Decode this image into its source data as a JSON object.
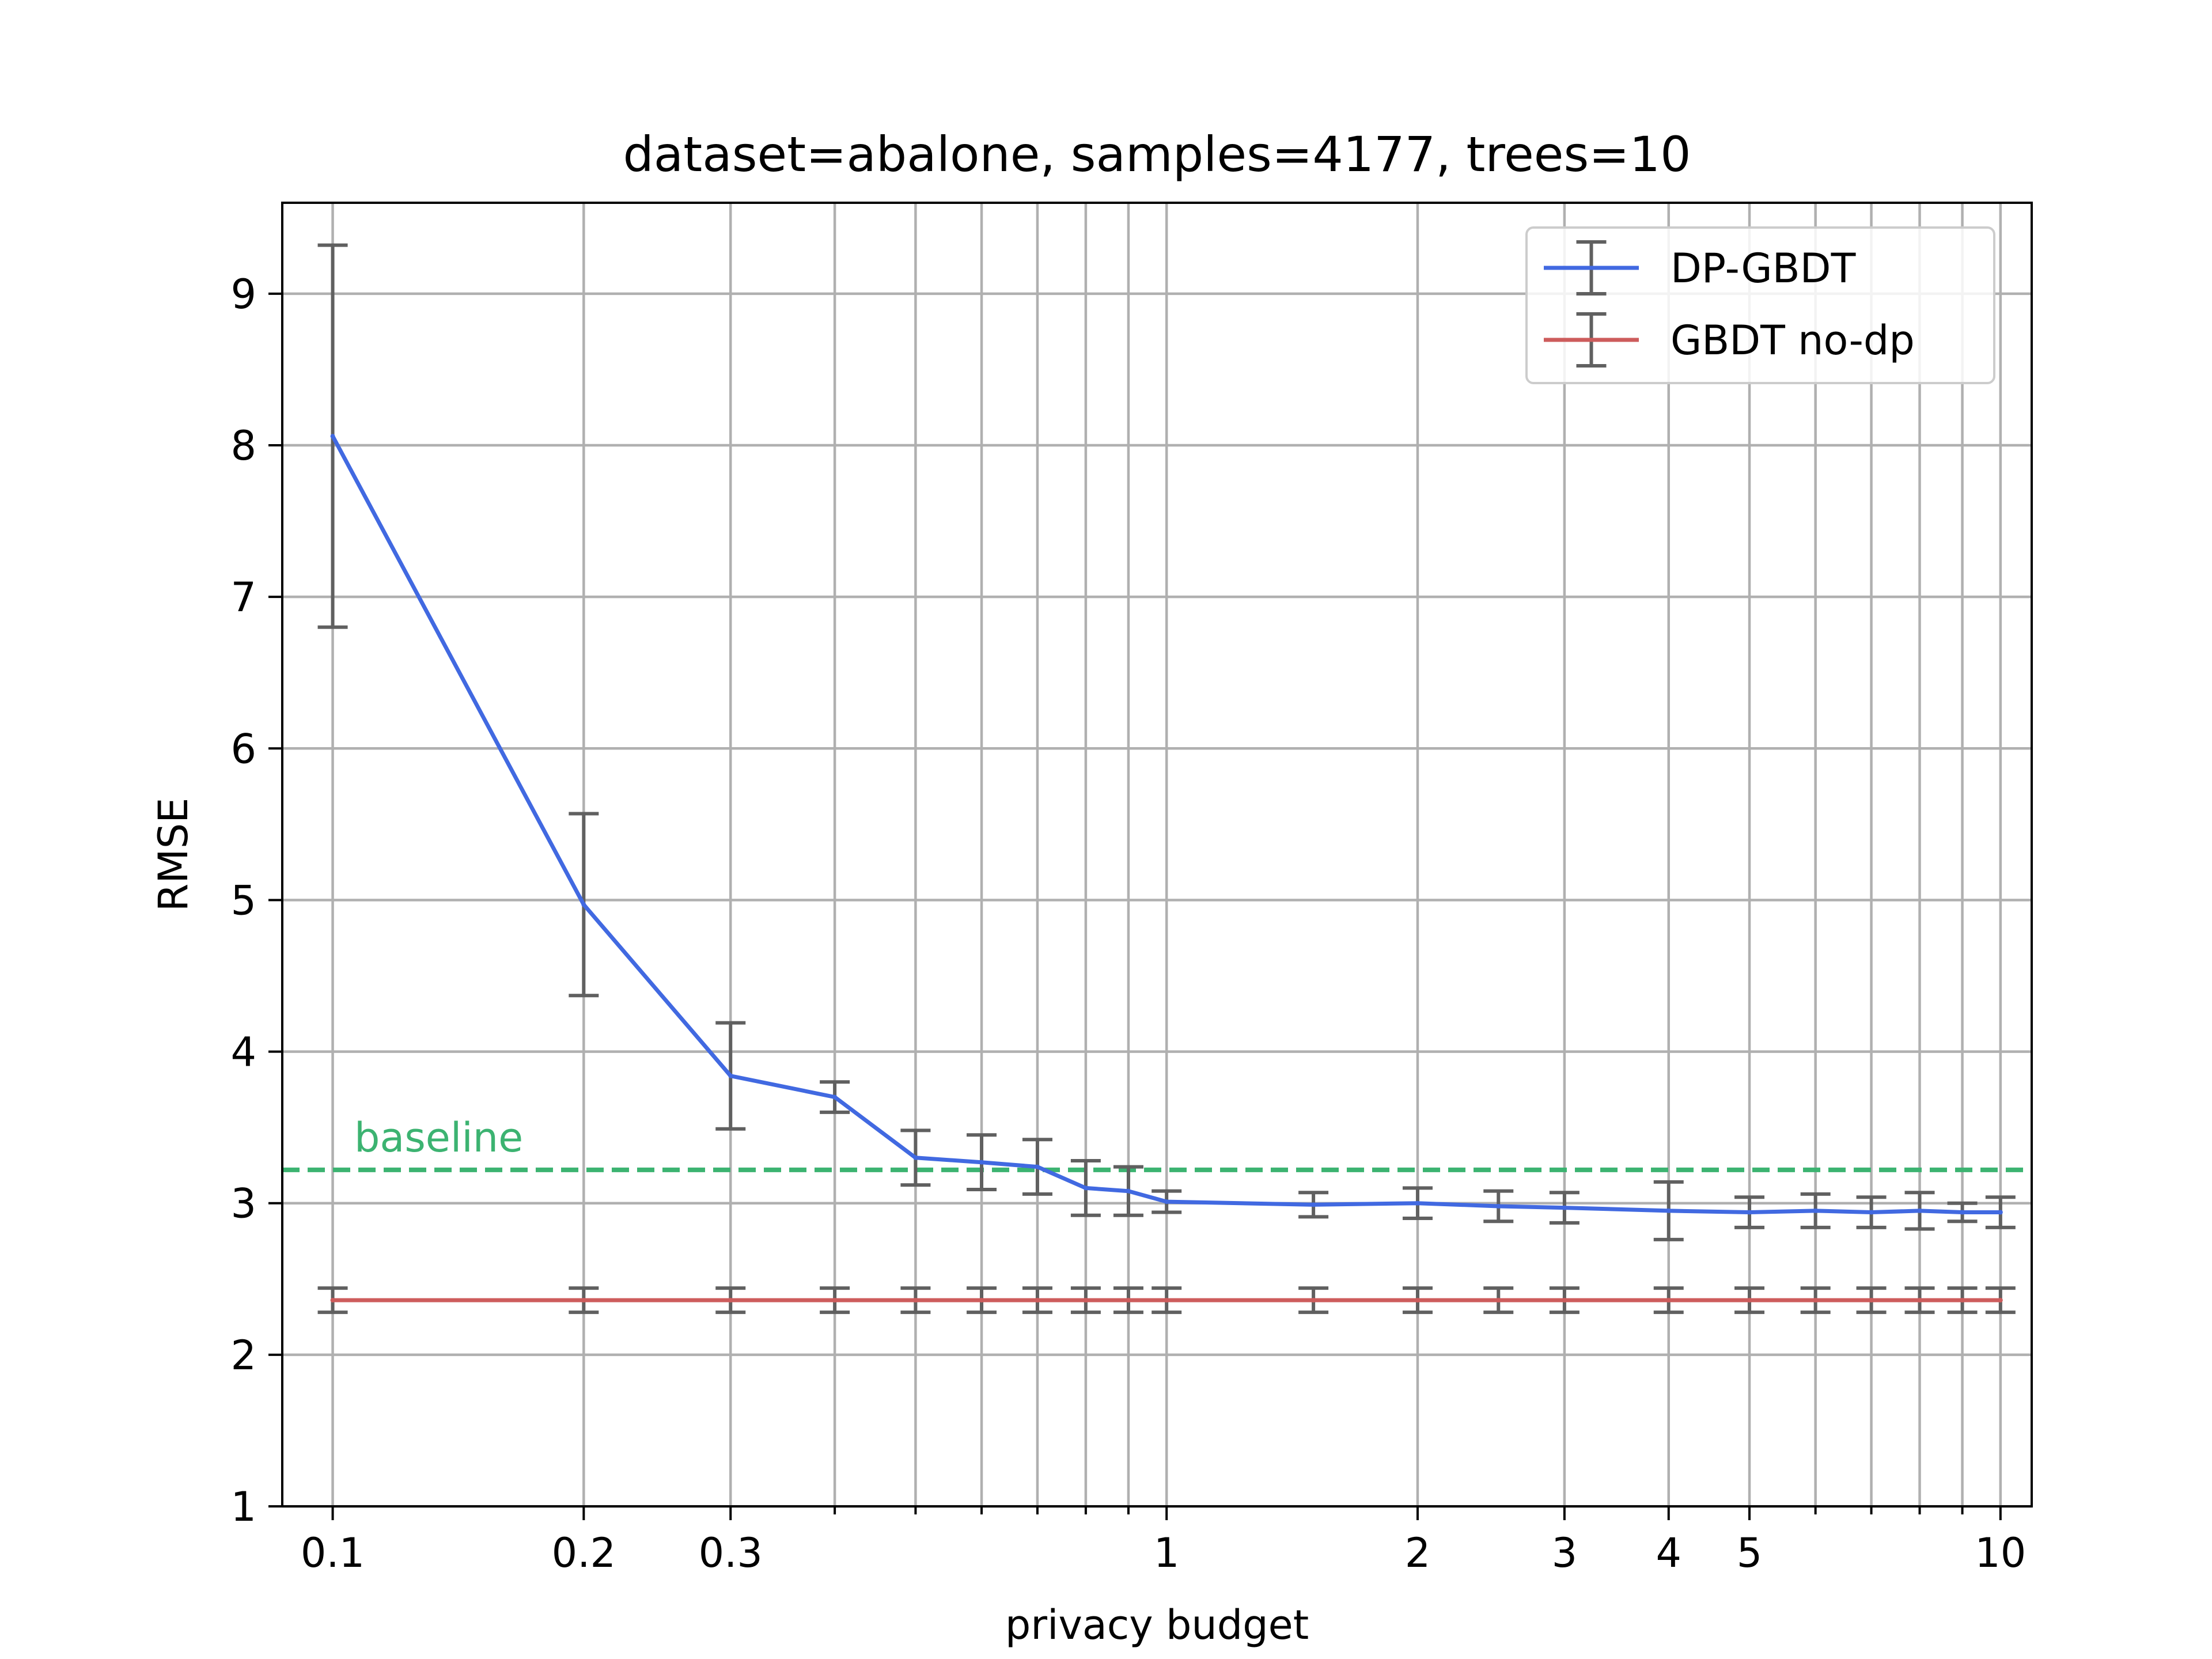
{
  "chart_data": {
    "type": "line",
    "title": "dataset=abalone, samples=4177, trees=10",
    "xlabel": "privacy budget",
    "ylabel": "RMSE",
    "xscale": "log",
    "xlim": [
      0.087,
      10.9
    ],
    "ylim": [
      1,
      9.6
    ],
    "grid": true,
    "legend_position": "top-right",
    "x": [
      0.1,
      0.2,
      0.3,
      0.4,
      0.5,
      0.6,
      0.7,
      0.8,
      0.9,
      1,
      1.5,
      2,
      2.5,
      3,
      4,
      5,
      6,
      7,
      8,
      9,
      10
    ],
    "x_major_ticks": [
      0.1,
      0.2,
      0.3,
      1,
      2,
      3,
      4,
      5,
      10
    ],
    "x_tick_labels": [
      "0.1",
      "0.2",
      "0.3",
      "1",
      "2",
      "3",
      "4",
      "5",
      "10"
    ],
    "x_minor_ticks": [
      0.4,
      0.5,
      0.6,
      0.7,
      0.8,
      0.9,
      6,
      7,
      8,
      9
    ],
    "y_ticks": [
      1,
      2,
      3,
      4,
      5,
      6,
      7,
      8,
      9
    ],
    "y_tick_labels": [
      "1",
      "2",
      "3",
      "4",
      "5",
      "6",
      "7",
      "8",
      "9"
    ],
    "series": [
      {
        "name": "DP-GBDT",
        "color": "#4169e1",
        "values": [
          8.06,
          4.97,
          3.84,
          3.7,
          3.3,
          3.27,
          3.24,
          3.1,
          3.08,
          3.01,
          2.99,
          3.0,
          2.98,
          2.97,
          2.95,
          2.94,
          2.95,
          2.94,
          2.95,
          2.94,
          2.94
        ],
        "errors": [
          1.26,
          0.6,
          0.35,
          0.1,
          0.18,
          0.18,
          0.18,
          0.18,
          0.16,
          0.07,
          0.08,
          0.1,
          0.1,
          0.1,
          0.19,
          0.1,
          0.11,
          0.1,
          0.12,
          0.06,
          0.1
        ]
      },
      {
        "name": "GBDT no-dp",
        "color": "#cd5c5c",
        "values": [
          2.36,
          2.36,
          2.36,
          2.36,
          2.36,
          2.36,
          2.36,
          2.36,
          2.36,
          2.36,
          2.36,
          2.36,
          2.36,
          2.36,
          2.36,
          2.36,
          2.36,
          2.36,
          2.36,
          2.36,
          2.36
        ],
        "errors": [
          0.08,
          0.08,
          0.08,
          0.08,
          0.08,
          0.08,
          0.08,
          0.08,
          0.08,
          0.08,
          0.08,
          0.08,
          0.08,
          0.08,
          0.08,
          0.08,
          0.08,
          0.08,
          0.08,
          0.08,
          0.08
        ]
      }
    ],
    "error_bar_color": "#606060",
    "baseline": {
      "label": "baseline",
      "value": 3.22,
      "color": "#3cb371"
    }
  }
}
